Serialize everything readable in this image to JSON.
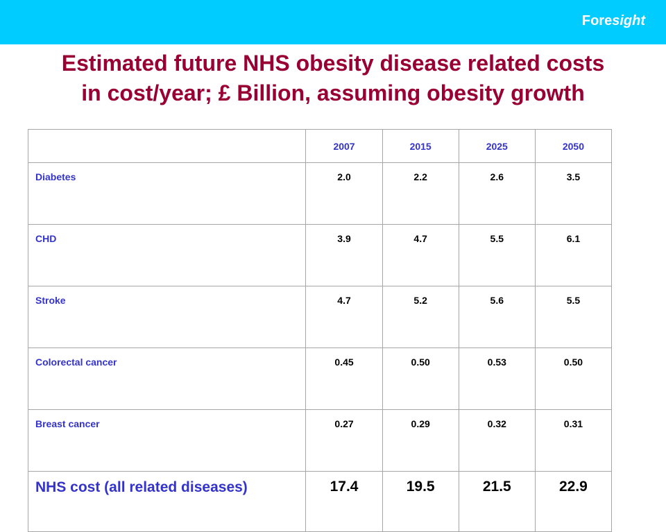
{
  "header": {
    "brand_prefix": "Fore",
    "brand_suffix": "sight",
    "bar_color": "#00ccff"
  },
  "title": {
    "line1": "Estimated future NHS obesity disease related costs",
    "line2": "in cost/year; £ Billion, assuming obesity growth",
    "color": "#990033"
  },
  "table": {
    "years": [
      "2007",
      "2015",
      "2025",
      "2050"
    ],
    "rows": [
      {
        "label": "Diabetes",
        "values": [
          "2.0",
          "2.2",
          "2.6",
          "3.5"
        ]
      },
      {
        "label": "CHD",
        "values": [
          "3.9",
          "4.7",
          "5.5",
          "6.1"
        ]
      },
      {
        "label": "Stroke",
        "values": [
          "4.7",
          "5.2",
          "5.6",
          "5.5"
        ]
      },
      {
        "label": "Colorectal cancer",
        "values": [
          "0.45",
          "0.50",
          "0.53",
          "0.50"
        ]
      },
      {
        "label": "Breast cancer",
        "values": [
          "0.27",
          "0.29",
          "0.32",
          "0.31"
        ]
      }
    ],
    "total": {
      "label": "NHS cost (all related diseases)",
      "values": [
        "17.4",
        "19.5",
        "21.5",
        "22.9"
      ]
    }
  }
}
